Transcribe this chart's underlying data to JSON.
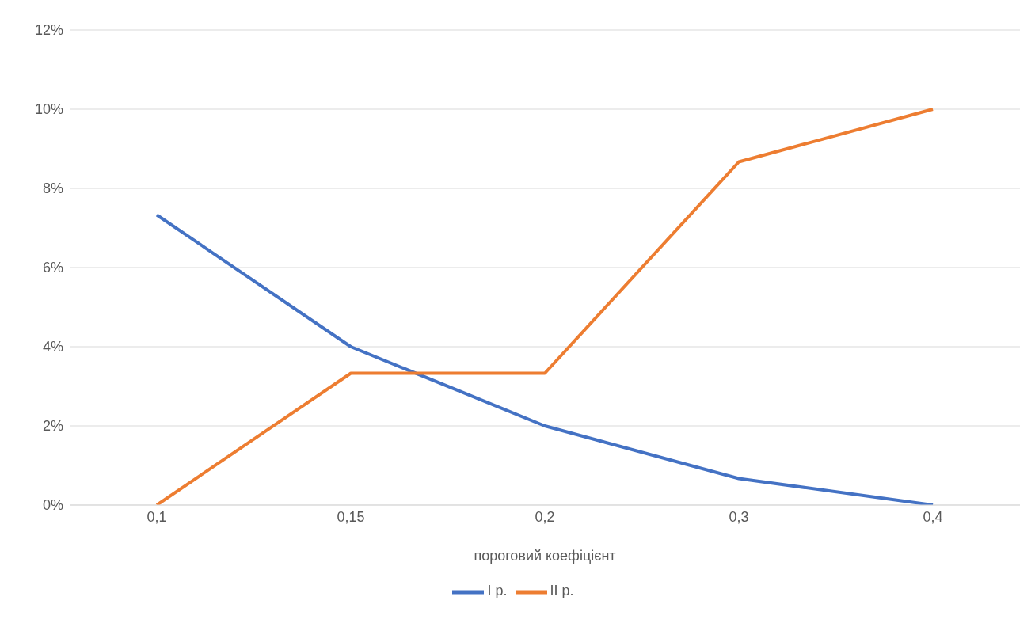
{
  "chart_data": {
    "type": "line",
    "xlabel": "пороговий коефіцієнт",
    "categories": [
      "0,1",
      "0,15",
      "0,2",
      "0,3",
      "0,4"
    ],
    "series": [
      {
        "name": "I р.",
        "color": "#4472c4",
        "values": [
          7.33,
          4,
          2,
          0.67,
          0
        ]
      },
      {
        "name": "II р.",
        "color": "#ed7d31",
        "values": [
          0,
          3.33,
          3.33,
          8.67,
          10
        ]
      }
    ],
    "ylim": [
      0,
      12
    ],
    "yticks": [
      {
        "value": 0,
        "label": "0%"
      },
      {
        "value": 2,
        "label": "2%"
      },
      {
        "value": 4,
        "label": "4%"
      },
      {
        "value": 6,
        "label": "6%"
      },
      {
        "value": 8,
        "label": "8%"
      },
      {
        "value": 10,
        "label": "10%"
      },
      {
        "value": 12,
        "label": "12%"
      }
    ],
    "grid": "y",
    "legend": "bottom",
    "marker": "none",
    "line_style": "solid"
  }
}
